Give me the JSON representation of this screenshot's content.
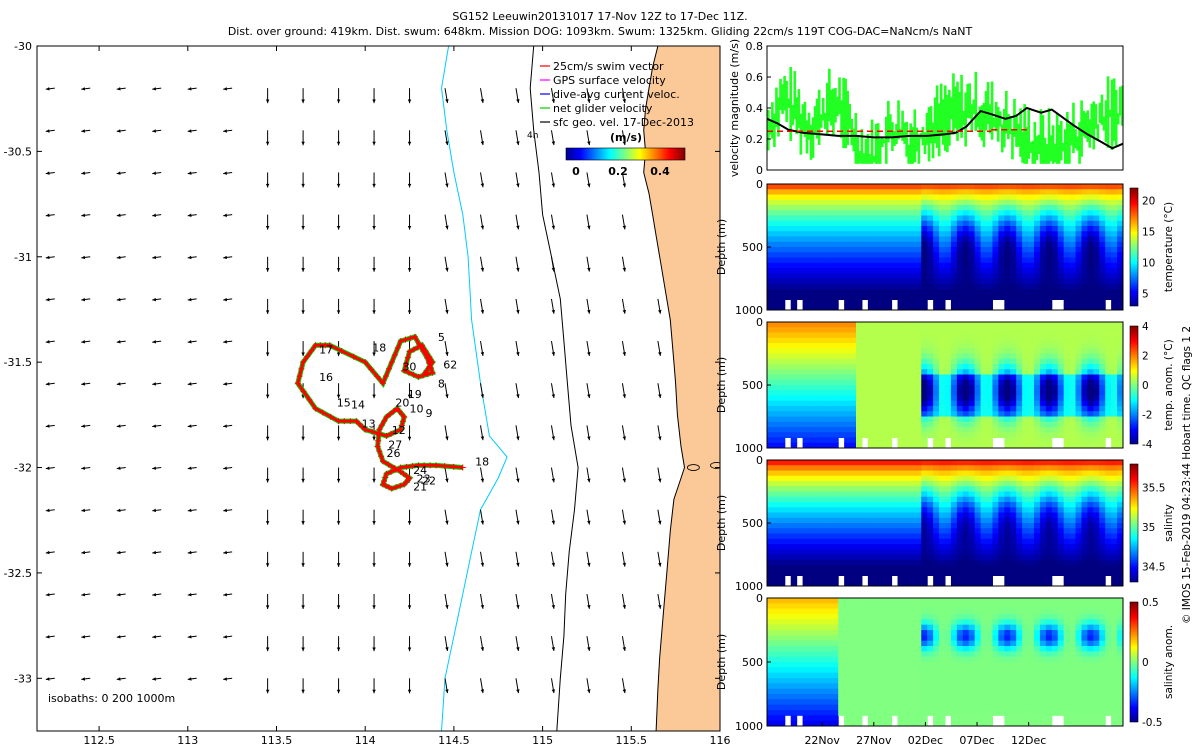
{
  "header": {
    "line1": "SG152 Leeuwin20131017 17-Nov 12Z to 17-Dec 11Z.",
    "line2": "Dist. over ground: 419km. Dist. swum: 648km. Mission DOG: 1093km. Swum: 1325km. Gliding 22cm/s 119T COG-DAC=NaNcm/s NaNT"
  },
  "side_label": "© IMOS 15-Feb-2019 04:23:44 Hobart time. QC flags 1  2",
  "map": {
    "legend": {
      "items": [
        "25cm/s swim vector",
        "GPS surface velocity",
        "dive-avg current veloc.",
        "net glider velocity",
        "sfc geo. vel. 17-Dec-2013"
      ],
      "item_colors": [
        "#ff0000",
        "#ff00ff",
        "#0000ff",
        "#00cc00",
        "#000000"
      ],
      "cbar_title": "(m/s)",
      "cbar_ticks": [
        "0",
        "0.2",
        "0.4"
      ]
    },
    "isobaths_label": "isobaths: 0   200  1000m",
    "marker_4h": "4h",
    "land_color": "#fbc898",
    "coast_color": "#000000",
    "isobath200_color": "#000000",
    "isobath1000_color": "#00ccff",
    "track_color": "#ff0000",
    "net_color": "#00cc00"
  },
  "chart_data": [
    {
      "type": "scatter",
      "name": "glider-track-map",
      "xlim": [
        112.15,
        116.0
      ],
      "ylim": [
        -33.25,
        -30.0
      ],
      "xticks": [
        112.5,
        113,
        113.5,
        114,
        114.5,
        115,
        115.5,
        116
      ],
      "yticks": [
        -30,
        -30.5,
        -31,
        -31.5,
        -32,
        -32.5,
        -33
      ],
      "xtick_labels": [
        "112.5",
        "113",
        "113.5",
        "114",
        "114.5",
        "115",
        "115.5",
        "116"
      ],
      "ytick_labels": [
        "-30",
        "-30.5",
        "-31",
        "-31.5",
        "-32",
        "-32.5",
        "-33"
      ],
      "track": [
        [
          114.55,
          -32.0
        ],
        [
          114.4,
          -31.99
        ],
        [
          114.3,
          -31.99
        ],
        [
          114.2,
          -32.0
        ],
        [
          114.12,
          -32.03
        ],
        [
          114.1,
          -32.08
        ],
        [
          114.15,
          -32.1
        ],
        [
          114.22,
          -32.08
        ],
        [
          114.25,
          -32.05
        ],
        [
          114.2,
          -32.02
        ],
        [
          114.1,
          -31.97
        ],
        [
          114.07,
          -31.9
        ],
        [
          114.08,
          -31.82
        ],
        [
          114.12,
          -31.76
        ],
        [
          114.18,
          -31.72
        ],
        [
          114.22,
          -31.76
        ],
        [
          114.2,
          -31.82
        ],
        [
          114.12,
          -31.85
        ],
        [
          114.0,
          -31.82
        ],
        [
          113.95,
          -31.78
        ],
        [
          113.85,
          -31.78
        ],
        [
          113.72,
          -31.72
        ],
        [
          113.62,
          -31.6
        ],
        [
          113.65,
          -31.5
        ],
        [
          113.72,
          -31.42
        ],
        [
          113.8,
          -31.42
        ],
        [
          114.0,
          -31.5
        ],
        [
          114.1,
          -31.6
        ],
        [
          114.15,
          -31.5
        ],
        [
          114.2,
          -31.4
        ],
        [
          114.28,
          -31.38
        ],
        [
          114.35,
          -31.48
        ],
        [
          114.38,
          -31.55
        ],
        [
          114.3,
          -31.57
        ],
        [
          114.22,
          -31.54
        ],
        [
          114.25,
          -31.45
        ],
        [
          114.32,
          -31.42
        ],
        [
          114.38,
          -31.5
        ],
        [
          114.33,
          -31.56
        ]
      ],
      "labels": [
        {
          "text": "18",
          "lon": 114.62,
          "lat": -31.99
        },
        {
          "text": "24",
          "lon": 114.27,
          "lat": -32.03
        },
        {
          "text": "23",
          "lon": 114.29,
          "lat": -32.07
        },
        {
          "text": "22",
          "lon": 114.32,
          "lat": -32.08
        },
        {
          "text": "21",
          "lon": 114.27,
          "lat": -32.11
        },
        {
          "text": "26",
          "lon": 114.12,
          "lat": -31.95
        },
        {
          "text": "27",
          "lon": 114.13,
          "lat": -31.91
        },
        {
          "text": "12",
          "lon": 114.15,
          "lat": -31.84
        },
        {
          "text": "13",
          "lon": 113.98,
          "lat": -31.81
        },
        {
          "text": "14",
          "lon": 113.92,
          "lat": -31.72
        },
        {
          "text": "15",
          "lon": 113.84,
          "lat": -31.71
        },
        {
          "text": "16",
          "lon": 113.74,
          "lat": -31.59
        },
        {
          "text": "17",
          "lon": 113.74,
          "lat": -31.46
        },
        {
          "text": "18",
          "lon": 114.04,
          "lat": -31.45
        },
        {
          "text": "19",
          "lon": 114.24,
          "lat": -31.67
        },
        {
          "text": "20",
          "lon": 114.17,
          "lat": -31.71
        },
        {
          "text": "10",
          "lon": 114.25,
          "lat": -31.74
        },
        {
          "text": "9",
          "lon": 114.34,
          "lat": -31.76
        },
        {
          "text": "8",
          "lon": 114.41,
          "lat": -31.62
        },
        {
          "text": "30",
          "lon": 114.21,
          "lat": -31.54
        },
        {
          "text": "5",
          "lon": 114.41,
          "lat": -31.4
        },
        {
          "text": "62",
          "lon": 114.44,
          "lat": -31.53
        }
      ]
    },
    {
      "type": "line",
      "name": "velocity-magnitude",
      "ylabel": "velocity magnitude (m/s)",
      "xlim": [
        0,
        1
      ],
      "ylim": [
        0,
        0.8
      ],
      "yticks": [
        0,
        0.2,
        0.4,
        0.6,
        0.8
      ],
      "ytick_labels": [
        "0",
        "0.2",
        "0.4",
        "0.6",
        "0.8"
      ],
      "series": [
        {
          "color": "#000000",
          "x": [
            0,
            0.03,
            0.06,
            0.1,
            0.15,
            0.2,
            0.25,
            0.3,
            0.35,
            0.4,
            0.45,
            0.5,
            0.53,
            0.56,
            0.6,
            0.63,
            0.67,
            0.7,
            0.73,
            0.77,
            0.8,
            0.83,
            0.86,
            0.9,
            0.94,
            0.97,
            1.0
          ],
          "y": [
            0.33,
            0.3,
            0.26,
            0.24,
            0.23,
            0.22,
            0.22,
            0.21,
            0.21,
            0.22,
            0.22,
            0.23,
            0.24,
            0.28,
            0.38,
            0.36,
            0.33,
            0.35,
            0.4,
            0.37,
            0.39,
            0.34,
            0.29,
            0.23,
            0.18,
            0.14,
            0.17
          ]
        },
        {
          "color": "#ff0000",
          "x": [
            0.0,
            0.63
          ],
          "y": [
            0.25,
            0.25
          ],
          "dash": "6,4"
        },
        {
          "color": "#ff0000",
          "x": [
            0.63,
            0.73
          ],
          "y": [
            0.26,
            0.26
          ],
          "dash": "6,4"
        }
      ]
    },
    {
      "type": "heatmap",
      "name": "temperature",
      "ylabel": "Depth (m)",
      "clabel": "temperature (°C)",
      "ylim": [
        1000,
        0
      ],
      "yticks": [
        0,
        500,
        1000
      ],
      "ytick_labels": [
        "0",
        "500",
        "1000"
      ],
      "cticks": [
        5,
        10,
        15,
        20
      ],
      "ctick_labels": [
        "5",
        "10",
        "15",
        "20"
      ],
      "clim": [
        3,
        22
      ]
    },
    {
      "type": "heatmap",
      "name": "temp-anomaly",
      "ylabel": "Depth (m)",
      "clabel": "temp. anom. (°C)",
      "ylim": [
        1000,
        0
      ],
      "yticks": [
        0,
        500,
        1000
      ],
      "ytick_labels": [
        "0",
        "500",
        "1000"
      ],
      "cticks": [
        4,
        2,
        0,
        -2,
        -4
      ],
      "ctick_labels": [
        "4",
        "2",
        "0",
        "-2",
        "-4"
      ],
      "clim": [
        -4,
        4
      ]
    },
    {
      "type": "heatmap",
      "name": "salinity",
      "ylabel": "Depth (m)",
      "clabel": "salinity",
      "ylim": [
        1000,
        0
      ],
      "yticks": [
        0,
        500,
        1000
      ],
      "ytick_labels": [
        "0",
        "500",
        "1000"
      ],
      "cticks": [
        35.5,
        35,
        34.5
      ],
      "ctick_labels": [
        "35.5",
        "35",
        "34.5"
      ],
      "clim": [
        34.3,
        35.8
      ]
    },
    {
      "type": "heatmap",
      "name": "salinity-anomaly",
      "ylabel": "Depth (m)",
      "clabel": "salinity anom.",
      "ylim": [
        1000,
        0
      ],
      "yticks": [
        0,
        500,
        1000
      ],
      "ytick_labels": [
        "0",
        "500",
        "1000"
      ],
      "cticks": [
        0.5,
        0,
        -0.5
      ],
      "ctick_labels": [
        "0.5",
        "0",
        "-0.5"
      ],
      "clim": [
        -0.5,
        0.5
      ],
      "xtick_labels": [
        "22Nov",
        "27Nov",
        "02Dec",
        "07Dec",
        "12Dec"
      ],
      "xticks_frac": [
        0.155,
        0.3,
        0.445,
        0.59,
        0.735
      ]
    }
  ]
}
